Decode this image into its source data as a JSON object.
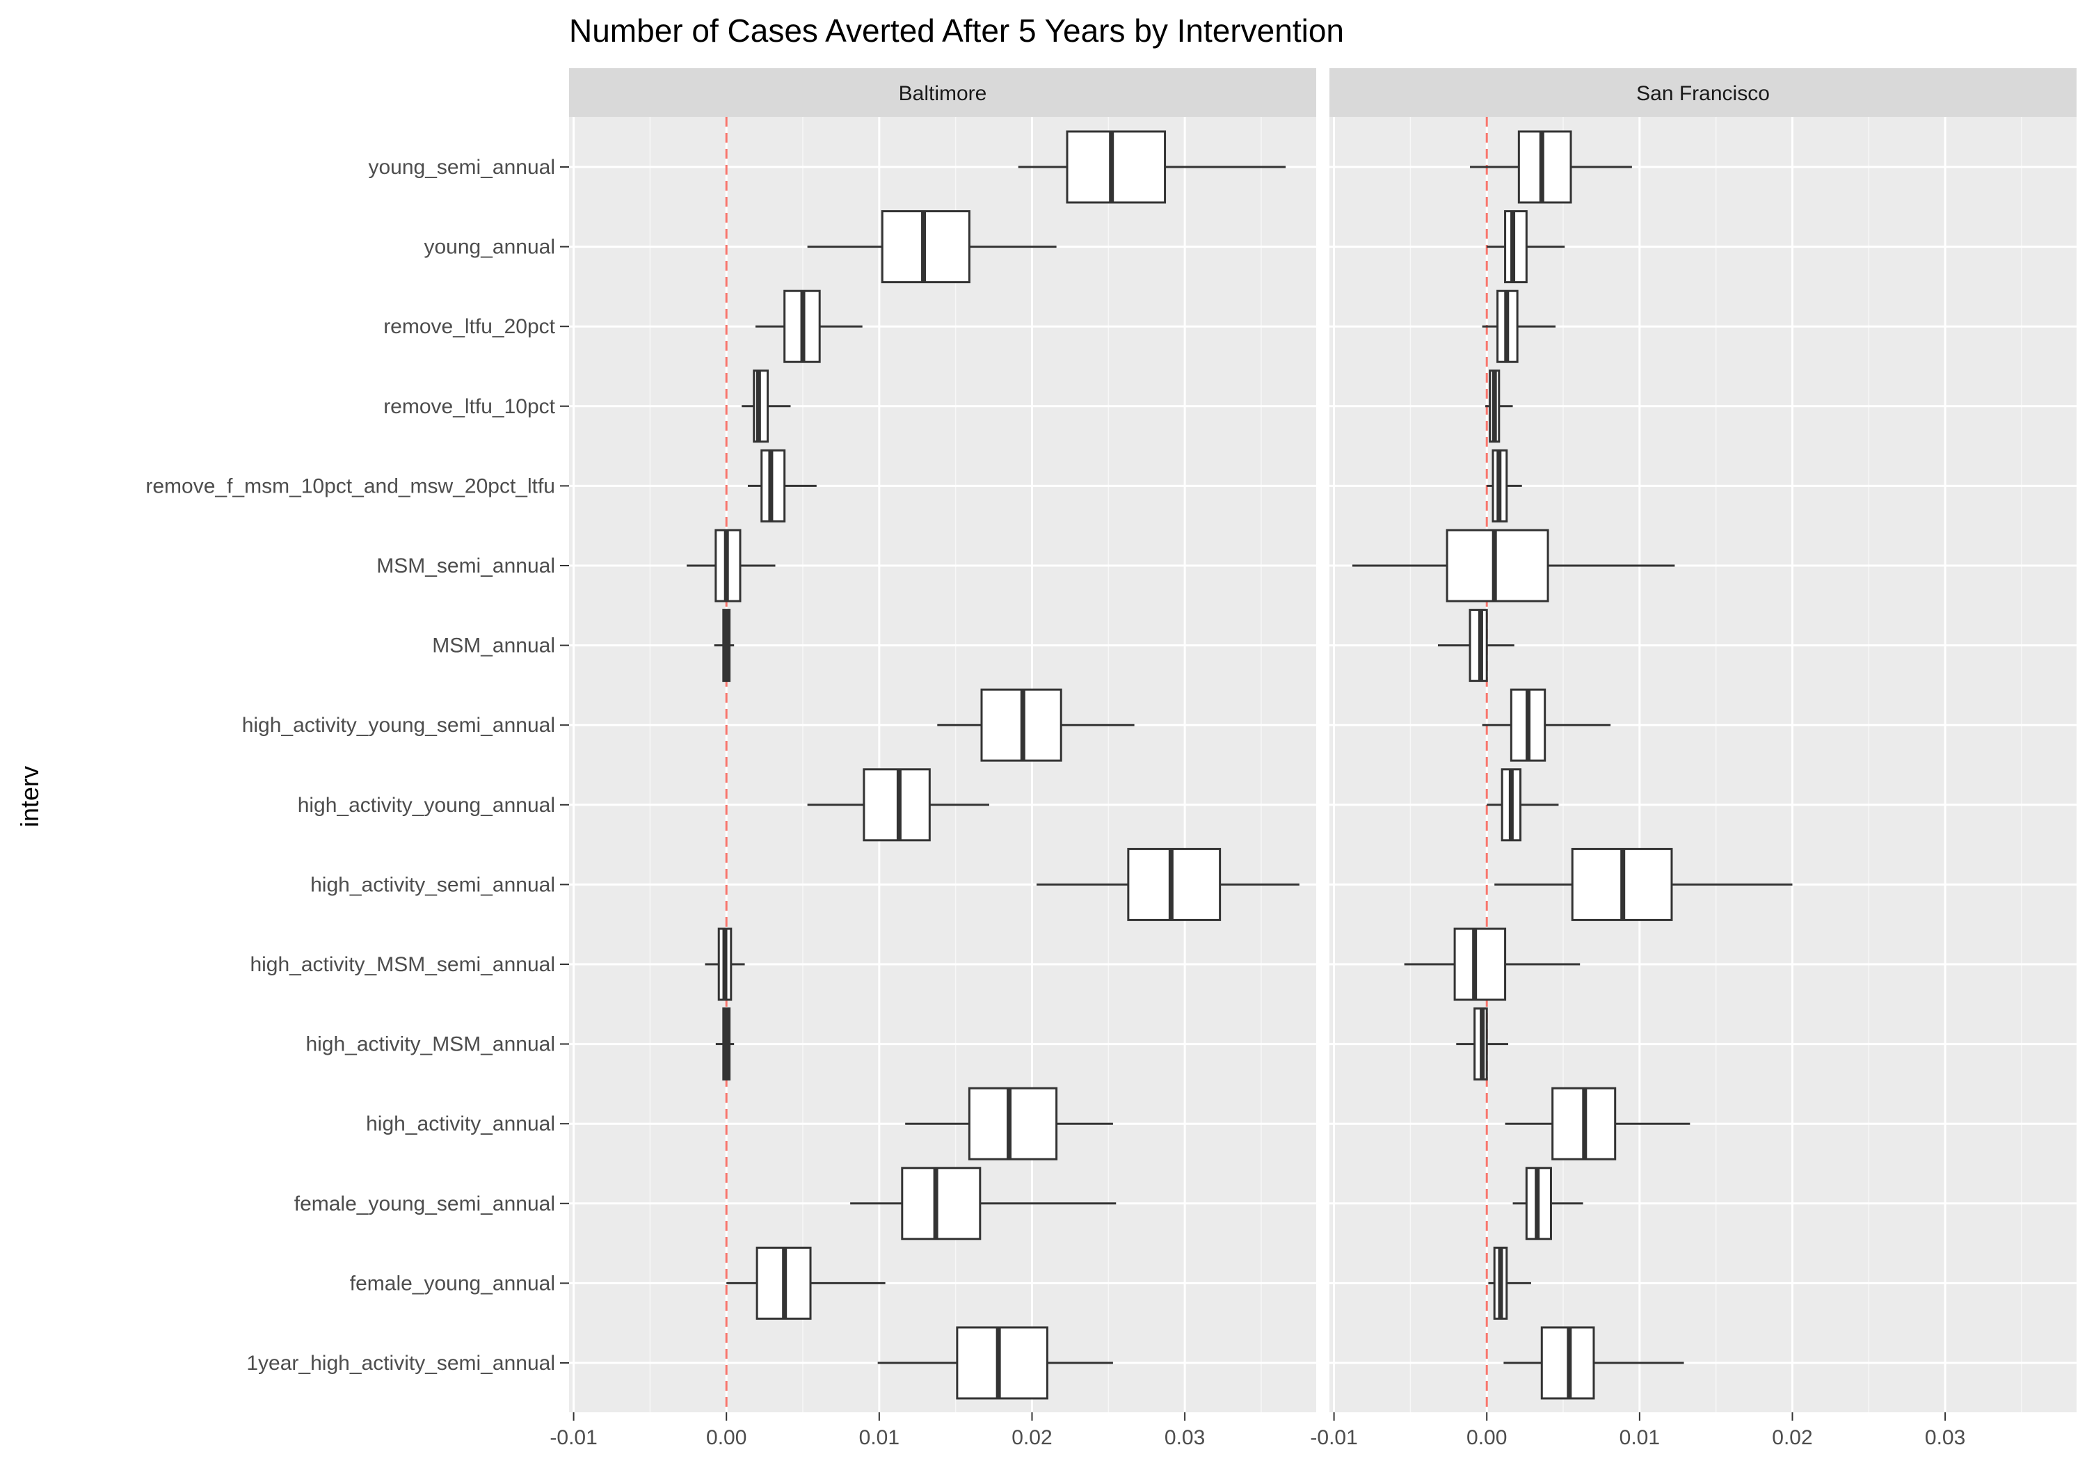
{
  "chart_data": {
    "type": "boxplot",
    "title": "Number of Cases Averted After 5 Years by Intervention",
    "ylabel": "interv",
    "xlabel": "",
    "xlim": [
      -0.0103,
      0.0386
    ],
    "x_ticks": [
      -0.01,
      0.0,
      0.01,
      0.02,
      0.03
    ],
    "x_tick_labels": [
      "-0.01",
      "0.00",
      "0.01",
      "0.02",
      "0.03"
    ],
    "reference_line": {
      "x": 0,
      "style": "dashed",
      "color": "#f8766d"
    },
    "categories": [
      "young_semi_annual",
      "young_annual",
      "remove_ltfu_20pct",
      "remove_ltfu_10pct",
      "remove_f_msm_10pct_and_msw_20pct_ltfu",
      "MSM_semi_annual",
      "MSM_annual",
      "high_activity_young_semi_annual",
      "high_activity_young_annual",
      "high_activity_semi_annual",
      "high_activity_MSM_semi_annual",
      "high_activity_MSM_annual",
      "high_activity_annual",
      "female_young_semi_annual",
      "female_young_annual",
      "1year_high_activity_semi_annual"
    ],
    "panels": [
      {
        "name": "Baltimore",
        "boxes": [
          {
            "min": 0.0191,
            "q1": 0.0223,
            "median": 0.0252,
            "q3": 0.0287,
            "max": 0.0366
          },
          {
            "min": 0.0053,
            "q1": 0.0102,
            "median": 0.0129,
            "q3": 0.0159,
            "max": 0.0216
          },
          {
            "min": 0.0019,
            "q1": 0.0038,
            "median": 0.005,
            "q3": 0.0061,
            "max": 0.0089
          },
          {
            "min": 0.001,
            "q1": 0.0018,
            "median": 0.0021,
            "q3": 0.0027,
            "max": 0.0042
          },
          {
            "min": 0.0014,
            "q1": 0.0023,
            "median": 0.0029,
            "q3": 0.0038,
            "max": 0.0059
          },
          {
            "min": -0.0026,
            "q1": -0.0007,
            "median": 0.0,
            "q3": 0.0009,
            "max": 0.0032
          },
          {
            "min": -0.0008,
            "q1": -0.0002,
            "median": 0.0,
            "q3": 0.0002,
            "max": 0.0005
          },
          {
            "min": 0.0138,
            "q1": 0.0167,
            "median": 0.0194,
            "q3": 0.0219,
            "max": 0.0267
          },
          {
            "min": 0.0053,
            "q1": 0.009,
            "median": 0.0113,
            "q3": 0.0133,
            "max": 0.0172
          },
          {
            "min": 0.0203,
            "q1": 0.0263,
            "median": 0.0291,
            "q3": 0.0323,
            "max": 0.0375
          },
          {
            "min": -0.0014,
            "q1": -0.0005,
            "median": -0.0001,
            "q3": 0.0003,
            "max": 0.0012
          },
          {
            "min": -0.0007,
            "q1": -0.0002,
            "median": 0.0,
            "q3": 0.0002,
            "max": 0.0005
          },
          {
            "min": 0.0117,
            "q1": 0.0159,
            "median": 0.0185,
            "q3": 0.0216,
            "max": 0.0253
          },
          {
            "min": 0.0081,
            "q1": 0.0115,
            "median": 0.0137,
            "q3": 0.0166,
            "max": 0.0255
          },
          {
            "min": 0.0,
            "q1": 0.002,
            "median": 0.0038,
            "q3": 0.0055,
            "max": 0.0104
          },
          {
            "min": 0.0099,
            "q1": 0.0151,
            "median": 0.0178,
            "q3": 0.021,
            "max": 0.0253
          }
        ]
      },
      {
        "name": "San Francisco",
        "boxes": [
          {
            "min": -0.0011,
            "q1": 0.0021,
            "median": 0.0036,
            "q3": 0.0055,
            "max": 0.0095
          },
          {
            "min": 0.0,
            "q1": 0.0012,
            "median": 0.0017,
            "q3": 0.0026,
            "max": 0.0051
          },
          {
            "min": -0.0003,
            "q1": 0.0007,
            "median": 0.0013,
            "q3": 0.002,
            "max": 0.0045
          },
          {
            "min": -0.0001,
            "q1": 0.0002,
            "median": 0.0005,
            "q3": 0.0008,
            "max": 0.0017
          },
          {
            "min": 0.0,
            "q1": 0.0004,
            "median": 0.0008,
            "q3": 0.0013,
            "max": 0.0023
          },
          {
            "min": -0.0088,
            "q1": -0.0026,
            "median": 0.0005,
            "q3": 0.004,
            "max": 0.0123
          },
          {
            "min": -0.0032,
            "q1": -0.0011,
            "median": -0.0004,
            "q3": 0.0,
            "max": 0.0018
          },
          {
            "min": -0.0003,
            "q1": 0.0016,
            "median": 0.0027,
            "q3": 0.0038,
            "max": 0.0081
          },
          {
            "min": 0.0,
            "q1": 0.001,
            "median": 0.0016,
            "q3": 0.0022,
            "max": 0.0047
          },
          {
            "min": 0.0005,
            "q1": 0.0056,
            "median": 0.0089,
            "q3": 0.0121,
            "max": 0.02
          },
          {
            "min": -0.0054,
            "q1": -0.0021,
            "median": -0.0008,
            "q3": 0.0012,
            "max": 0.0061
          },
          {
            "min": -0.002,
            "q1": -0.0008,
            "median": -0.0003,
            "q3": 0.0,
            "max": 0.0014
          },
          {
            "min": 0.0012,
            "q1": 0.0043,
            "median": 0.0064,
            "q3": 0.0084,
            "max": 0.0133
          },
          {
            "min": 0.0017,
            "q1": 0.0026,
            "median": 0.0033,
            "q3": 0.0042,
            "max": 0.0063
          },
          {
            "min": 0.0001,
            "q1": 0.0005,
            "median": 0.0009,
            "q3": 0.0013,
            "max": 0.0029
          },
          {
            "min": 0.0011,
            "q1": 0.0036,
            "median": 0.0054,
            "q3": 0.007,
            "max": 0.0129
          }
        ]
      }
    ]
  }
}
